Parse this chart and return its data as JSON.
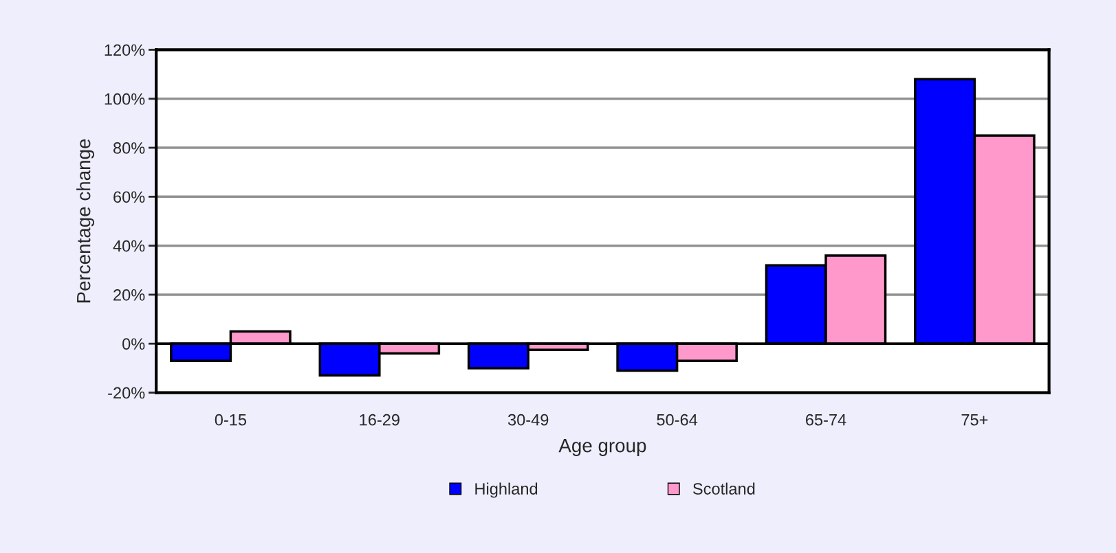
{
  "chart_data": {
    "type": "bar",
    "categories": [
      "0-15",
      "16-29",
      "30-49",
      "50-64",
      "65-74",
      "75+"
    ],
    "series": [
      {
        "name": "Highland",
        "color": "#0000ff",
        "values": [
          -7,
          -13,
          -10,
          -11,
          32,
          108
        ]
      },
      {
        "name": "Scotland",
        "color": "#ff99cc",
        "values": [
          5,
          -4,
          -2.5,
          -7,
          36,
          85
        ]
      }
    ],
    "xlabel": "Age group",
    "ylabel": "Percentage change",
    "ylim": [
      -20,
      120
    ],
    "yticks": [
      {
        "value": -20,
        "label": "-20%"
      },
      {
        "value": 0,
        "label": "0%"
      },
      {
        "value": 20,
        "label": "20%"
      },
      {
        "value": 40,
        "label": "40%"
      },
      {
        "value": 60,
        "label": "60%"
      },
      {
        "value": 80,
        "label": "80%"
      },
      {
        "value": 100,
        "label": "100%"
      },
      {
        "value": 120,
        "label": "120%"
      }
    ],
    "grid": "y",
    "legend": "bottom"
  }
}
